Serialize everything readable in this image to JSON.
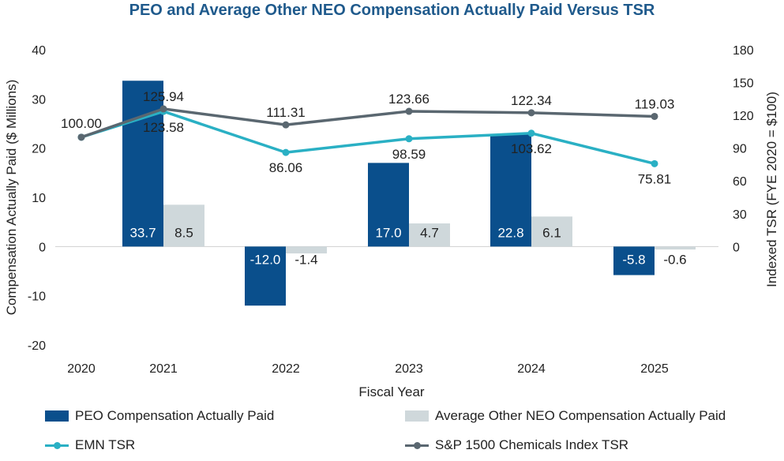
{
  "chart_data": {
    "type": "bar+line",
    "title": "PEO and Average Other NEO Compensation Actually Paid Versus TSR",
    "xlabel": "Fiscal Year",
    "ylabel_left": "Compensation Actually Paid ($ Millions)",
    "ylabel_right": "Indexed TSR (FYE 2020 = $100)",
    "categories": [
      "2020",
      "2021",
      "2022",
      "2023",
      "2024",
      "2025"
    ],
    "ylim_left": [
      -20,
      40
    ],
    "yticks_left": [
      "40",
      "30",
      "20",
      "10",
      "0",
      "-10",
      "-20"
    ],
    "ylim_right": [
      -90,
      180
    ],
    "yticks_right": [
      "180",
      "150",
      "120",
      "90",
      "60",
      "30",
      "0"
    ],
    "bar_series": [
      {
        "name": "PEO Compensation Actually Paid",
        "color": "#0a4f8c",
        "values": [
          null,
          33.7,
          -12.0,
          17.0,
          22.8,
          -5.8
        ],
        "labels": [
          "",
          "33.7",
          "-12.0",
          "17.0",
          "22.8",
          "-5.8"
        ]
      },
      {
        "name": "Average Other NEO Compensation Actually Paid",
        "color": "#cfd8db",
        "values": [
          null,
          8.5,
          -1.4,
          4.7,
          6.1,
          -0.6
        ],
        "labels": [
          "",
          "8.5",
          "-1.4",
          "4.7",
          "6.1",
          "-0.6"
        ]
      }
    ],
    "line_series": [
      {
        "name": "EMN TSR",
        "color": "#2ab0c4",
        "values": [
          100.0,
          123.58,
          86.06,
          98.59,
          103.62,
          75.81
        ],
        "labels": [
          "100.00",
          "123.58",
          "86.06",
          "98.59",
          "103.62",
          "75.81"
        ]
      },
      {
        "name": "S&P 1500 Chemicals Index TSR",
        "color": "#5a6770",
        "values": [
          100.0,
          125.94,
          111.31,
          123.66,
          122.34,
          119.03
        ],
        "labels": [
          "100.00",
          "125.94",
          "111.31",
          "123.66",
          "122.34",
          "119.03"
        ]
      }
    ],
    "legend": [
      "PEO Compensation Actually Paid",
      "Average Other NEO Compensation Actually Paid",
      "EMN TSR",
      "S&P 1500 Chemicals Index TSR"
    ]
  }
}
